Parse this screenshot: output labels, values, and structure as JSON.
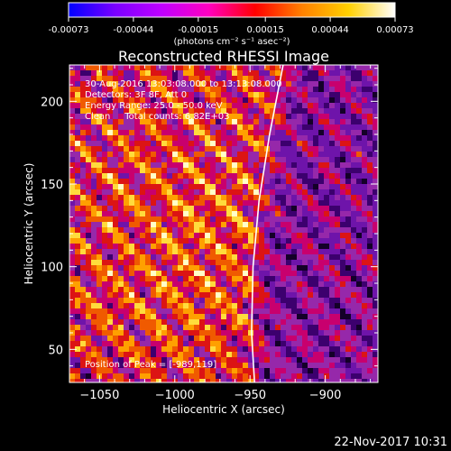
{
  "chart_data": {
    "type": "heatmap",
    "title": "Reconstructed RHESSI Image",
    "xlabel": "Heliocentric X (arcsec)",
    "ylabel": "Heliocentric Y (arcsec)",
    "xlim": [
      -1070,
      -865
    ],
    "ylim": [
      30,
      222
    ],
    "xticks": [
      -1050,
      -1000,
      -950,
      -900
    ],
    "yticks": [
      50,
      100,
      150,
      200
    ],
    "colorbar": {
      "units": "(photons cm⁻² s⁻¹ asec⁻²)",
      "range": [
        -0.00073,
        0.00073
      ],
      "tick_labels": [
        "-0.00073",
        "-0.00044",
        "-0.00015",
        "0.00015",
        "0.00044",
        "0.00073"
      ],
      "colormap": [
        "#0000ff",
        "#7a00ff",
        "#c000ff",
        "#ff00c0",
        "#ff0000",
        "#ff8000",
        "#ffd000",
        "#ffffff"
      ]
    },
    "annotations": [
      "30-Aug-2016 13:03:08.000 to 13:13:08.000",
      "Detectors: 3F 8F, Att 0",
      "Energy Range: 25.0 - 50.0 keV",
      "Clean     Total counts: 6.82E+03"
    ],
    "peak_label": "Position of Peak = [-989,119]",
    "peak_position": [
      -989,
      119
    ],
    "limb_curve": [
      [
        -947,
        30
      ],
      [
        -949,
        60
      ],
      [
        -948,
        100
      ],
      [
        -944,
        140
      ],
      [
        -937,
        180
      ],
      [
        -928,
        222
      ]
    ],
    "grid": false
  },
  "footer": {
    "date": "22-Nov-2017 10:31"
  }
}
